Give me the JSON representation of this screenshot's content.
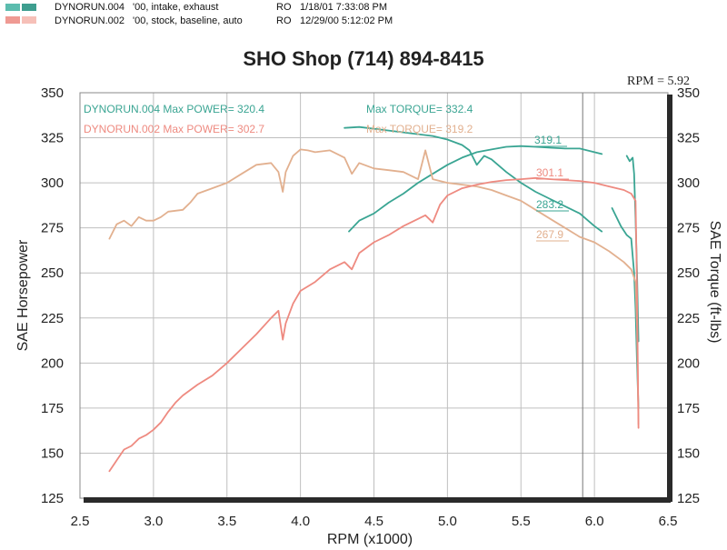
{
  "header": {
    "rows": [
      {
        "file": "DYNORUN.004",
        "desc": "'00, intake, exhaust",
        "tag": "RO",
        "datetime": "1/18/01 7:33:08 PM",
        "colors": [
          "#5bbcae",
          "#3e9e8f"
        ]
      },
      {
        "file": "DYNORUN.002",
        "desc": "'00, stock, baseline, auto",
        "tag": "RO",
        "datetime": "12/29/00 5:12:02 PM",
        "colors": [
          "#ef9a93",
          "#f6c0b8"
        ]
      }
    ]
  },
  "colors": {
    "run004": "#3aa593",
    "run002": "#ee8a80",
    "run002_torque": "#e2b08f",
    "grid": "#bfbfbf",
    "cursor": "#777777"
  },
  "chart_data": {
    "type": "line",
    "title": "SHO Shop (714) 894-8415",
    "xlabel": "RPM (x1000)",
    "ylabel": "SAE Horsepower",
    "y2label": "SAE Torque (ft-lbs)",
    "xlim": [
      2.5,
      6.5
    ],
    "ylim": [
      125,
      350
    ],
    "y2lim": [
      125,
      350
    ],
    "xticks": [
      "2.5",
      "3.0",
      "3.5",
      "4.0",
      "4.5",
      "5.0",
      "5.5",
      "6.0",
      "6.5"
    ],
    "yticks": [
      "125",
      "150",
      "175",
      "200",
      "225",
      "250",
      "275",
      "300",
      "325",
      "350"
    ],
    "cursor": {
      "label": "RPM = 5.92",
      "x": 5.92
    },
    "annotations": [
      {
        "text": "DYNORUN.004  Max POWER= 320.4",
        "series": "run004"
      },
      {
        "text": "Max TORQUE= 332.4",
        "series": "run004"
      },
      {
        "text": "DYNORUN.002  Max POWER= 302.7",
        "series": "run002"
      },
      {
        "text": "Max TORQUE= 319.2",
        "series": "run002_torque"
      }
    ],
    "value_labels": [
      {
        "text": "319.1",
        "series": "run004"
      },
      {
        "text": "301.1",
        "series": "run002"
      },
      {
        "text": "283.2",
        "series": "run004"
      },
      {
        "text": "267.9",
        "series": "run002_torque"
      }
    ],
    "series": [
      {
        "name": "DYNORUN.004",
        "key": "run004",
        "axis": "y2",
        "measure": "torque",
        "x": [
          4.3,
          4.4,
          4.5,
          4.6,
          4.7,
          4.8,
          4.9,
          5.0,
          5.1,
          5.15,
          5.2,
          5.25,
          5.3,
          5.4,
          5.5,
          5.6,
          5.7,
          5.8,
          5.9,
          6.0,
          6.05
        ],
        "y": [
          330.5,
          331.0,
          330.0,
          329.0,
          328.0,
          327.0,
          326.0,
          324.0,
          321.0,
          318.0,
          310.0,
          315.0,
          313.0,
          306.0,
          300.0,
          295.0,
          291.0,
          287.0,
          283.0,
          276.0,
          273.0
        ]
      },
      {
        "name": "DYNORUN.004",
        "key": "run004",
        "axis": "y2",
        "measure": "torque",
        "x": [
          6.12,
          6.18,
          6.22,
          6.25,
          6.27,
          6.28,
          6.29,
          6.3
        ],
        "y": [
          286.0,
          276.0,
          271.0,
          269.0,
          250.0,
          230.0,
          200.0,
          175.0
        ]
      },
      {
        "name": "DYNORUN.004",
        "key": "run004",
        "axis": "y",
        "measure": "power",
        "x": [
          4.33,
          4.4,
          4.5,
          4.6,
          4.7,
          4.8,
          4.9,
          5.0,
          5.1,
          5.2,
          5.3,
          5.4,
          5.5,
          5.6,
          5.7,
          5.8,
          5.9,
          6.0,
          6.05
        ],
        "y": [
          273.0,
          279.0,
          283.0,
          289.0,
          294.0,
          300.0,
          305.0,
          310.0,
          314.0,
          317.0,
          318.5,
          320.0,
          320.4,
          320.0,
          319.5,
          319.0,
          319.0,
          317.0,
          316.0
        ]
      },
      {
        "name": "DYNORUN.004",
        "key": "run004",
        "axis": "y",
        "measure": "power",
        "x": [
          6.22,
          6.24,
          6.26,
          6.27,
          6.28,
          6.29,
          6.3
        ],
        "y": [
          315.0,
          312.0,
          314.0,
          305.0,
          280.0,
          250.0,
          212.0
        ]
      },
      {
        "name": "DYNORUN.002",
        "key": "run002_torque",
        "axis": "y2",
        "measure": "torque",
        "x": [
          2.7,
          2.75,
          2.8,
          2.85,
          2.9,
          2.95,
          3.0,
          3.05,
          3.1,
          3.2,
          3.25,
          3.3,
          3.4,
          3.5,
          3.6,
          3.7,
          3.8,
          3.85,
          3.88,
          3.9,
          3.95,
          4.0,
          4.05,
          4.1,
          4.2,
          4.3,
          4.35,
          4.4,
          4.5,
          4.6,
          4.7,
          4.8,
          4.85,
          4.9,
          5.0,
          5.1,
          5.2,
          5.3,
          5.4,
          5.5,
          5.6,
          5.7,
          5.8,
          5.9,
          6.0,
          6.1,
          6.2,
          6.25,
          6.28,
          6.29,
          6.3
        ],
        "y": [
          269.0,
          277.0,
          279.0,
          276.0,
          281.0,
          279.0,
          279.0,
          281.0,
          284.0,
          285.0,
          289.0,
          294.0,
          297.0,
          300.0,
          305.0,
          310.0,
          311.0,
          306.0,
          295.0,
          306.0,
          315.0,
          318.5,
          318.0,
          317.0,
          318.0,
          314.0,
          305.0,
          311.0,
          308.0,
          307.0,
          306.0,
          302.0,
          318.0,
          302.0,
          300.0,
          299.0,
          298.0,
          296.0,
          293.0,
          290.0,
          285.0,
          280.0,
          275.0,
          270.0,
          267.0,
          262.0,
          256.0,
          252.0,
          245.0,
          220.0,
          166.0
        ]
      },
      {
        "name": "DYNORUN.002",
        "key": "run002",
        "axis": "y",
        "measure": "power",
        "x": [
          2.7,
          2.75,
          2.8,
          2.85,
          2.9,
          2.95,
          3.0,
          3.05,
          3.1,
          3.15,
          3.2,
          3.3,
          3.4,
          3.5,
          3.6,
          3.7,
          3.8,
          3.85,
          3.88,
          3.9,
          3.95,
          4.0,
          4.1,
          4.2,
          4.3,
          4.35,
          4.4,
          4.5,
          4.6,
          4.7,
          4.8,
          4.85,
          4.9,
          4.95,
          5.0,
          5.1,
          5.2,
          5.3,
          5.4,
          5.5,
          5.6,
          5.7,
          5.8,
          5.9,
          6.0,
          6.1,
          6.2,
          6.25,
          6.28,
          6.29,
          6.3
        ],
        "y": [
          140.0,
          146.0,
          152.0,
          154.0,
          158.0,
          160.0,
          163.0,
          167.0,
          173.0,
          178.0,
          182.0,
          188.0,
          193.0,
          200.0,
          208.0,
          216.0,
          225.0,
          229.0,
          213.0,
          222.0,
          233.0,
          240.0,
          245.0,
          252.0,
          256.0,
          252.0,
          261.0,
          267.0,
          271.0,
          276.0,
          280.0,
          282.0,
          278.0,
          288.0,
          293.0,
          297.0,
          299.0,
          300.5,
          301.5,
          302.0,
          302.7,
          302.0,
          301.5,
          301.0,
          300.0,
          298.0,
          296.0,
          294.0,
          290.0,
          240.0,
          164.0
        ]
      }
    ]
  }
}
